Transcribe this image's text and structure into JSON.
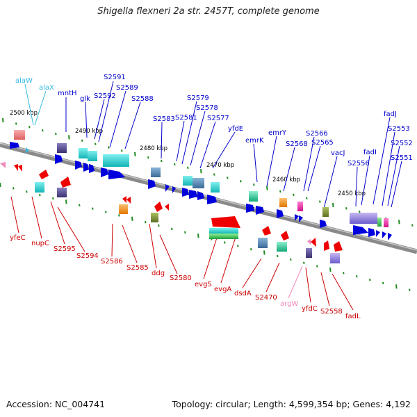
{
  "title": "Shigella flexneri 2a str. 2457T, complete genome",
  "accession_text": "Accession: NC_004741",
  "summary_text": "Topology: circular; Length: 4,599,354 bp; Genes: 4,192",
  "ticks": [
    {
      "label": "2500 kbp",
      "pos": 2500
    },
    {
      "label": "2490 kbp",
      "pos": 2490
    },
    {
      "label": "2480 kbp",
      "pos": 2480
    },
    {
      "label": "2470 kbp",
      "pos": 2470
    },
    {
      "label": "2460 kbp",
      "pos": 2460
    },
    {
      "label": "2450 kbp",
      "pos": 2450
    }
  ],
  "colors": {
    "backbone": "#8a8a8a",
    "forward_label": "#0000cc",
    "reverse_label": "#cc0000",
    "trna_label": "#33b8e0",
    "pseudo_label": "#ee88bb",
    "dot": "#228b22"
  },
  "top_labels": [
    {
      "text": "alaW",
      "color": "trna"
    },
    {
      "text": "alaX",
      "color": "trna"
    },
    {
      "text": "mntH",
      "color": "forward"
    },
    {
      "text": "glk",
      "color": "forward"
    },
    {
      "text": "S2592",
      "color": "forward"
    },
    {
      "text": "S2591",
      "color": "forward"
    },
    {
      "text": "S2589",
      "color": "forward"
    },
    {
      "text": "S2588",
      "color": "forward"
    },
    {
      "text": "S2583",
      "color": "forward"
    },
    {
      "text": "S2581",
      "color": "forward"
    },
    {
      "text": "S2579",
      "color": "forward"
    },
    {
      "text": "S2578",
      "color": "forward"
    },
    {
      "text": "S2577",
      "color": "forward"
    },
    {
      "text": "yfdE",
      "color": "forward"
    },
    {
      "text": "emrK",
      "color": "forward"
    },
    {
      "text": "emrY",
      "color": "forward"
    },
    {
      "text": "S2568",
      "color": "forward"
    },
    {
      "text": "S2566",
      "color": "forward"
    },
    {
      "text": "S2565",
      "color": "forward"
    },
    {
      "text": "vacJ",
      "color": "forward"
    },
    {
      "text": "S2556",
      "color": "forward"
    },
    {
      "text": "fadI",
      "color": "forward"
    },
    {
      "text": "fadJ",
      "color": "forward"
    },
    {
      "text": "S2553",
      "color": "forward"
    },
    {
      "text": "S2552",
      "color": "forward"
    },
    {
      "text": "S2551",
      "color": "forward"
    }
  ],
  "bottom_labels": [
    {
      "text": "yfeC",
      "color": "reverse"
    },
    {
      "text": "nupC",
      "color": "reverse"
    },
    {
      "text": "S2595",
      "color": "reverse"
    },
    {
      "text": "S2594",
      "color": "reverse"
    },
    {
      "text": "S2586",
      "color": "reverse"
    },
    {
      "text": "S2585",
      "color": "reverse"
    },
    {
      "text": "ddg",
      "color": "reverse"
    },
    {
      "text": "S2580",
      "color": "reverse"
    },
    {
      "text": "evgS",
      "color": "reverse"
    },
    {
      "text": "evgA",
      "color": "reverse"
    },
    {
      "text": "dsdA",
      "color": "reverse"
    },
    {
      "text": "S2470",
      "color": "reverse"
    },
    {
      "text": "argW",
      "color": "pseudo"
    },
    {
      "text": "yfdC",
      "color": "reverse"
    },
    {
      "text": "S2558",
      "color": "reverse"
    },
    {
      "text": "fadL",
      "color": "reverse"
    }
  ]
}
